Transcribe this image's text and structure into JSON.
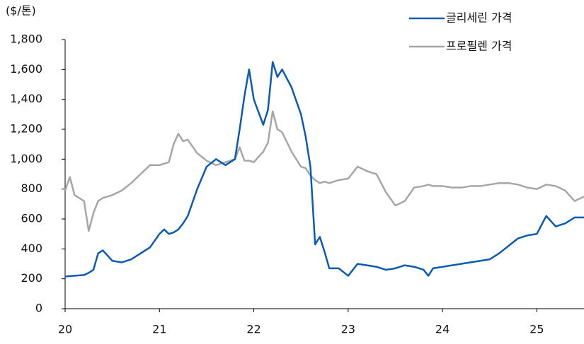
{
  "chart_data": {
    "type": "line",
    "y_label": "($/톤)",
    "x": [
      20,
      20.05,
      20.1,
      20.2,
      20.25,
      20.3,
      20.35,
      20.4,
      20.5,
      20.6,
      20.7,
      20.8,
      20.9,
      21,
      21.05,
      21.1,
      21.15,
      21.2,
      21.25,
      21.3,
      21.4,
      21.5,
      21.6,
      21.7,
      21.8,
      21.85,
      21.9,
      21.95,
      22,
      22.1,
      22.15,
      22.2,
      22.25,
      22.3,
      22.4,
      22.5,
      22.55,
      22.6,
      22.65,
      22.7,
      22.75,
      22.8,
      22.9,
      23,
      23.1,
      23.2,
      23.3,
      23.4,
      23.5,
      23.6,
      23.7,
      23.8,
      23.85,
      23.9,
      24,
      24.1,
      24.2,
      24.3,
      24.4,
      24.5,
      24.6,
      24.7,
      24.8,
      24.9,
      25,
      25.1,
      25.2,
      25.3,
      25.4,
      25.5
    ],
    "series": [
      {
        "name": "글리세린 가격",
        "color": "#0a5bb5",
        "values": [
          215,
          218,
          220,
          225,
          240,
          260,
          370,
          390,
          320,
          310,
          330,
          370,
          410,
          500,
          530,
          500,
          510,
          530,
          570,
          620,
          800,
          950,
          1000,
          960,
          1000,
          1200,
          1420,
          1600,
          1400,
          1230,
          1330,
          1650,
          1550,
          1600,
          1480,
          1300,
          1150,
          950,
          430,
          480,
          380,
          270,
          270,
          220,
          300,
          290,
          280,
          260,
          270,
          290,
          280,
          260,
          220,
          270,
          280,
          290,
          300,
          310,
          320,
          330,
          370,
          420,
          470,
          490,
          500,
          620,
          550,
          570,
          610,
          610
        ]
      },
      {
        "name": "프로필렌 가격",
        "color": "#a6a6a6",
        "values": [
          790,
          880,
          760,
          720,
          520,
          640,
          720,
          740,
          760,
          790,
          840,
          900,
          960,
          960,
          970,
          980,
          1100,
          1170,
          1120,
          1130,
          1040,
          990,
          960,
          980,
          1000,
          1080,
          990,
          990,
          980,
          1050,
          1110,
          1320,
          1200,
          1180,
          1050,
          950,
          940,
          890,
          860,
          840,
          850,
          840,
          860,
          870,
          950,
          920,
          900,
          780,
          690,
          720,
          810,
          820,
          830,
          820,
          820,
          810,
          810,
          820,
          820,
          830,
          840,
          840,
          830,
          810,
          800,
          830,
          820,
          790,
          720,
          750
        ]
      }
    ],
    "xlim": [
      20,
      25.5
    ],
    "xticks": [
      20,
      21,
      22,
      23,
      24,
      25
    ],
    "ylim": [
      0,
      1800
    ],
    "yticks": [
      0,
      200,
      400,
      600,
      800,
      {
        "value": 1000,
        "label": "1,000"
      },
      {
        "value": 1200,
        "label": "1,200"
      },
      {
        "value": 1400,
        "label": "1,400"
      },
      {
        "value": 1600,
        "label": "1,600"
      },
      {
        "value": 1800,
        "label": "1,800"
      }
    ],
    "legend": "top-right"
  }
}
